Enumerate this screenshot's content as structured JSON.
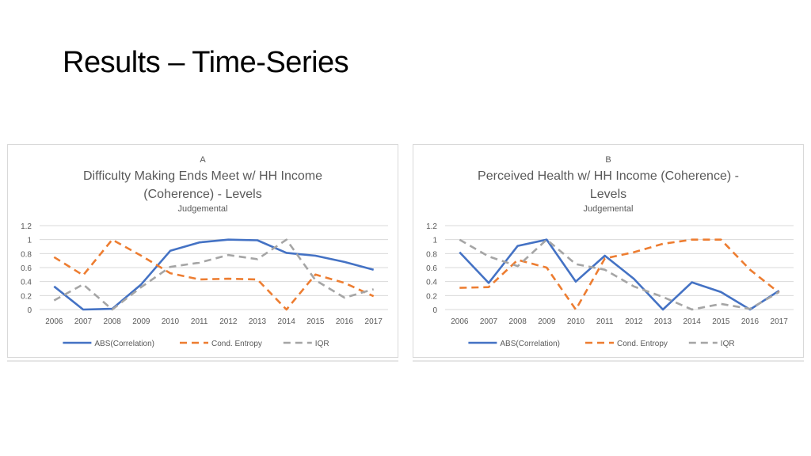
{
  "slide": {
    "title": "Results – Time-Series"
  },
  "colors": {
    "abs": "#4472c4",
    "entropy": "#ed7d31",
    "iqr": "#a5a5a5",
    "grid": "#d9d9d9",
    "text": "#595959"
  },
  "chart_data": [
    {
      "type": "line",
      "panel_label": "A",
      "title_line1": "Difficulty Making Ends Meet w/ HH Income",
      "title_line2": "(Coherence) - Levels",
      "subtitle": "Judgemental",
      "categories": [
        "2006",
        "2007",
        "2008",
        "2009",
        "2010",
        "2011",
        "2012",
        "2013",
        "2014",
        "2015",
        "2016",
        "2017"
      ],
      "ylim": [
        0,
        1.2
      ],
      "yticks": [
        0,
        0.2,
        0.4,
        0.6,
        0.8,
        1,
        1.2
      ],
      "ytick_labels": [
        "0",
        "0.2",
        "0.4",
        "0.6",
        "0.8",
        "1",
        "1.2"
      ],
      "grid": true,
      "legend": "bottom",
      "series": [
        {
          "name": "ABS(Correlation)",
          "color": "#4472c4",
          "dash": "solid",
          "values": [
            0.33,
            0.0,
            0.01,
            0.36,
            0.84,
            0.96,
            1.0,
            0.99,
            0.81,
            0.77,
            0.68,
            0.57
          ]
        },
        {
          "name": "Cond. Entropy",
          "color": "#ed7d31",
          "dash": "dash",
          "values": [
            0.75,
            0.49,
            1.0,
            0.77,
            0.52,
            0.43,
            0.44,
            0.43,
            0.0,
            0.5,
            0.38,
            0.19
          ]
        },
        {
          "name": "IQR",
          "color": "#a5a5a5",
          "dash": "dash",
          "values": [
            0.13,
            0.36,
            0.0,
            0.32,
            0.61,
            0.67,
            0.78,
            0.72,
            1.0,
            0.42,
            0.17,
            0.29
          ]
        }
      ]
    },
    {
      "type": "line",
      "panel_label": "B",
      "title_line1": "Perceived Health w/ HH Income (Coherence) -",
      "title_line2": "Levels",
      "subtitle": "Judgemental",
      "categories": [
        "2006",
        "2007",
        "2008",
        "2009",
        "2010",
        "2011",
        "2012",
        "2013",
        "2014",
        "2015",
        "2016",
        "2017"
      ],
      "ylim": [
        0,
        1.2
      ],
      "yticks": [
        0,
        0.2,
        0.4,
        0.6,
        0.8,
        1,
        1.2
      ],
      "ytick_labels": [
        "0",
        "0.2",
        "0.4",
        "0.6",
        "0.8",
        "1",
        "1.2"
      ],
      "grid": true,
      "legend": "bottom",
      "series": [
        {
          "name": "ABS(Correlation)",
          "color": "#4472c4",
          "dash": "solid",
          "values": [
            0.82,
            0.38,
            0.91,
            1.0,
            0.4,
            0.77,
            0.44,
            0.0,
            0.39,
            0.25,
            0.0,
            0.27
          ]
        },
        {
          "name": "Cond. Entropy",
          "color": "#ed7d31",
          "dash": "dash",
          "values": [
            0.31,
            0.32,
            0.71,
            0.6,
            0.0,
            0.73,
            0.82,
            0.94,
            1.0,
            1.0,
            0.57,
            0.24
          ]
        },
        {
          "name": "IQR",
          "color": "#a5a5a5",
          "dash": "dash",
          "values": [
            1.0,
            0.76,
            0.62,
            1.0,
            0.65,
            0.57,
            0.33,
            0.18,
            0.0,
            0.08,
            0.01,
            0.25
          ]
        }
      ]
    }
  ]
}
